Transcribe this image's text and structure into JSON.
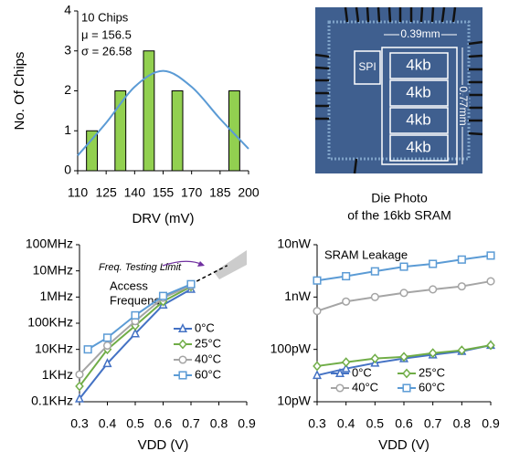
{
  "chart_data": [
    {
      "type": "histogram",
      "xlabel": "DRV (mV)",
      "ylabel": "No. Of Chips",
      "bins": [
        110,
        125,
        140,
        155,
        170,
        185,
        200
      ],
      "values": [
        1,
        2,
        3,
        2,
        0,
        2
      ],
      "color": "#92d050",
      "xlim": [
        110,
        200
      ],
      "xticks": [
        110,
        125,
        140,
        155,
        170,
        185,
        200
      ],
      "ylim": [
        0,
        4
      ],
      "yticks": [
        0,
        1,
        2,
        3,
        4
      ],
      "annotations": [
        "10 Chips",
        "μ = 156.5",
        "σ = 26.58"
      ],
      "fit": {
        "color": "#5b9bd5",
        "x": [
          110,
          125,
          140,
          155,
          170,
          185,
          200
        ],
        "values": [
          0.38,
          1.2,
          2.1,
          2.5,
          2.1,
          1.3,
          0.55
        ]
      }
    },
    {
      "type": "line",
      "log_y": true,
      "xlabel": "VDD (V)",
      "xlim": [
        0.3,
        0.9
      ],
      "xticks": [
        0.3,
        0.4,
        0.5,
        0.6,
        0.7,
        0.8,
        0.9
      ],
      "ylim": [
        100,
        100000000
      ],
      "yticks": [
        {
          "value": 100,
          "label": "0.1KHz"
        },
        {
          "value": 1000,
          "label": "1KHz"
        },
        {
          "value": 10000,
          "label": "10KHz"
        },
        {
          "value": 100000,
          "label": "100KHz"
        },
        {
          "value": 1000000,
          "label": "1MHz"
        },
        {
          "value": 10000000,
          "label": "10MHz"
        },
        {
          "value": 100000000,
          "label": "100MHz"
        }
      ],
      "legend": "right",
      "annotations": [
        "Freq. Testing Limit",
        "Access",
        "Frequency"
      ],
      "extrapolation": {
        "x": [
          0.7,
          0.83
        ],
        "values": [
          3100000,
          16000000
        ]
      },
      "series": [
        {
          "name": "0°C",
          "color": "#4472c4",
          "marker": "triangle",
          "x": [
            0.3,
            0.4,
            0.5,
            0.6,
            0.7
          ],
          "values": [
            130,
            2900,
            40000,
            500000,
            2000000
          ]
        },
        {
          "name": "25°C",
          "color": "#70ad47",
          "marker": "diamond",
          "x": [
            0.3,
            0.4,
            0.5,
            0.6,
            0.7
          ],
          "values": [
            390,
            10000,
            80000,
            680000,
            2500000
          ]
        },
        {
          "name": "40°C",
          "color": "#a5a5a5",
          "marker": "circle",
          "x": [
            0.3,
            0.4,
            0.5,
            0.6,
            0.7
          ],
          "values": [
            1100,
            14000,
            120000,
            940000,
            2700000
          ]
        },
        {
          "name": "60°C",
          "color": "#5b9bd5",
          "marker": "square",
          "x": [
            0.33,
            0.4,
            0.5,
            0.6,
            0.7
          ],
          "values": [
            10000,
            28000,
            200000,
            1100000,
            3100000
          ]
        }
      ]
    },
    {
      "type": "line",
      "log_y": true,
      "xlabel": "VDD (V)",
      "xlim": [
        0.3,
        0.9
      ],
      "xticks": [
        0.3,
        0.4,
        0.5,
        0.6,
        0.7,
        0.8,
        0.9
      ],
      "ylim": [
        1e-11,
        1e-08
      ],
      "yticks": [
        {
          "value": 1e-11,
          "label": "10pW"
        },
        {
          "value": 1e-10,
          "label": "100pW"
        },
        {
          "value": 1e-09,
          "label": "1nW"
        },
        {
          "value": 1e-08,
          "label": "10nW"
        }
      ],
      "legend": "bottom-right",
      "annotations": [
        "SRAM Leakage"
      ],
      "x": [
        0.3,
        0.4,
        0.5,
        0.6,
        0.7,
        0.8,
        0.9
      ],
      "series": [
        {
          "name": "0°C",
          "color": "#4472c4",
          "marker": "triangle",
          "values": [
            3.2e-11,
            4.3e-11,
            5.5e-11,
            6.7e-11,
            7.9e-11,
            9.2e-11,
            1.2e-10
          ]
        },
        {
          "name": "25°C",
          "color": "#70ad47",
          "marker": "diamond",
          "values": [
            4.8e-11,
            5.7e-11,
            6.7e-11,
            7.2e-11,
            8.5e-11,
            9.6e-11,
            1.2e-10
          ]
        },
        {
          "name": "40°C",
          "color": "#a5a5a5",
          "marker": "circle",
          "values": [
            5.4e-10,
            8.2e-10,
            1e-09,
            1.2e-09,
            1.4e-09,
            1.6e-09,
            2e-09
          ]
        },
        {
          "name": "60°C",
          "color": "#5b9bd5",
          "marker": "square",
          "values": [
            2.07e-09,
            2.5e-09,
            3.1e-09,
            3.8e-09,
            4.3e-09,
            5.2e-09,
            6.2e-09
          ]
        }
      ]
    }
  ],
  "die_photo": {
    "block_labels": [
      "SPI",
      "4kb",
      "4kb",
      "4kb",
      "4kb"
    ],
    "width_label": "0.39mm",
    "height_label": "0.77mm",
    "caption": [
      "Die Photo",
      "of the 16kb SRAM"
    ]
  }
}
